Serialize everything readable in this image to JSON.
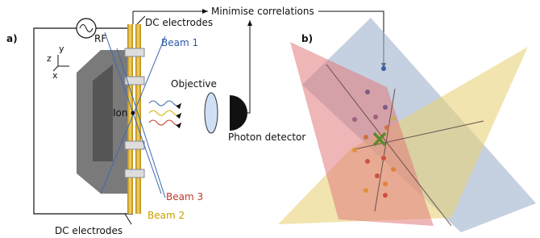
{
  "panels": [
    {
      "label": "a)",
      "texts": {
        "rf": "RF",
        "dc_top": "DC electrodes",
        "beam1": "Beam 1",
        "beam2": "Beam 2",
        "beam3": "Beam 3",
        "ion": "Ion",
        "objective": "Objective",
        "detector": "Photon detector",
        "dc_bottom": "DC electrodes",
        "axis_z": "z",
        "axis_y": "y",
        "axis_x": "x"
      }
    },
    {
      "label": "b)"
    }
  ],
  "feedback": "Minimise correlations"
}
